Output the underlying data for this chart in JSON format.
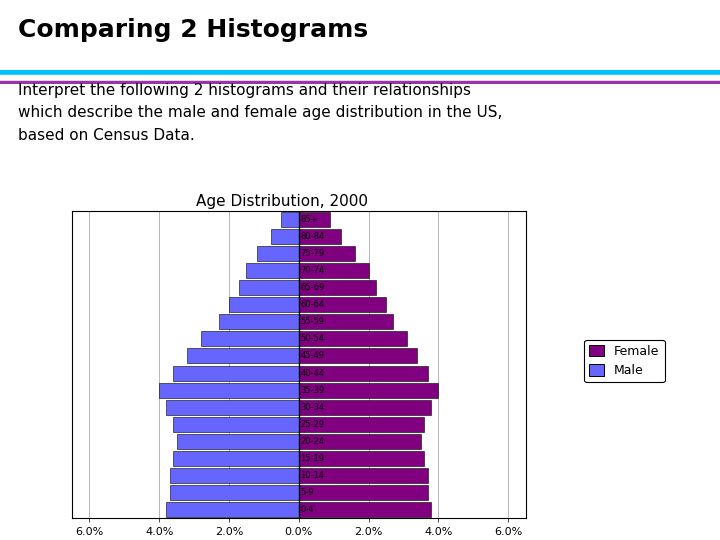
{
  "title": "Comparing 2 Histograms",
  "subtitle": "Interpret the following 2 histograms and their relationships\nwhich describe the male and female age distribution in the US,\nbased on Census Data.",
  "chart_title": "Age Distribution, 2000",
  "age_groups": [
    "0-4",
    "5-9",
    "10-14",
    "15-19",
    "20-24",
    "25-29",
    "30-34",
    "35-39",
    "40-44",
    "45-49",
    "50-54",
    "55-59",
    "60-64",
    "65-69",
    "70-74",
    "75-79",
    "80-84",
    "85+"
  ],
  "male": [
    3.8,
    3.7,
    3.7,
    3.6,
    3.5,
    3.6,
    3.8,
    4.0,
    3.6,
    3.2,
    2.8,
    2.3,
    2.0,
    1.7,
    1.5,
    1.2,
    0.8,
    0.5
  ],
  "female": [
    3.8,
    3.7,
    3.7,
    3.6,
    3.5,
    3.6,
    3.8,
    4.0,
    3.7,
    3.4,
    3.1,
    2.7,
    2.5,
    2.2,
    2.0,
    1.6,
    1.2,
    0.9
  ],
  "male_color": "#6666FF",
  "female_color": "#800080",
  "background_color": "#FFFFFF",
  "title_color": "#000000",
  "title_fontsize": 18,
  "subtitle_fontsize": 11,
  "chart_title_fontsize": 11,
  "xlim": [
    -6.5,
    6.5
  ],
  "header_line_color1": "#00BFFF",
  "header_line_color2": "#9933AA"
}
